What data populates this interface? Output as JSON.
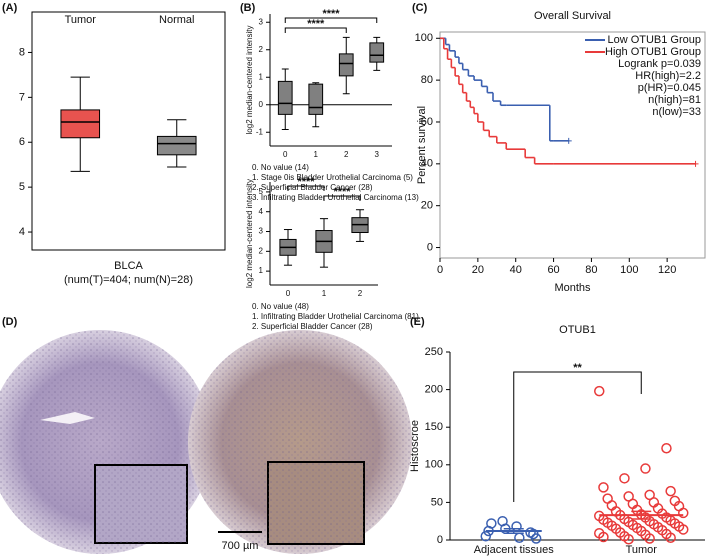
{
  "chart_data": [
    {
      "type": "box",
      "panel": "(A)",
      "categories": [
        "Tumor",
        "Normal"
      ],
      "boxes": [
        {
          "min": 5.35,
          "q1": 6.1,
          "median": 6.45,
          "q3": 6.72,
          "max": 7.45,
          "color": "#e8534f"
        },
        {
          "min": 5.45,
          "q1": 5.72,
          "median": 5.97,
          "q3": 6.13,
          "max": 6.5,
          "color": "#8a8a8a"
        }
      ],
      "ylim": [
        3.6,
        8.5
      ],
      "yticks": [
        4,
        5,
        6,
        7,
        8
      ],
      "xlabel": "BLCA",
      "note": "(num(T)=404; num(N)=28)"
    },
    {
      "type": "box",
      "panel": "(B)",
      "ylabel": "log2 median-centered intensity",
      "categories": [
        "0",
        "1",
        "2",
        "3"
      ],
      "boxes": [
        {
          "min": -0.9,
          "q1": -0.35,
          "median": 0.05,
          "q3": 0.85,
          "max": 1.3,
          "color": "#808080"
        },
        {
          "min": -0.8,
          "q1": -0.35,
          "median": -0.1,
          "q3": 0.75,
          "max": 0.8,
          "color": "#808080"
        },
        {
          "min": 0.4,
          "q1": 1.05,
          "median": 1.5,
          "q3": 1.85,
          "max": 2.45,
          "color": "#808080"
        },
        {
          "min": 1.25,
          "q1": 1.55,
          "median": 1.8,
          "q3": 2.25,
          "max": 2.45,
          "color": "#808080"
        }
      ],
      "ylim": [
        -1.5,
        3.3
      ],
      "yticks": [
        -1,
        0,
        1,
        2,
        3
      ],
      "reference_line": 0,
      "brackets": [
        {
          "between": [
            "0",
            "3"
          ],
          "label": "****"
        },
        {
          "between": [
            "0",
            "2"
          ],
          "label": "****"
        }
      ],
      "legend_notes": [
        "0. No value (14)",
        "1. Stage 0is Bladder Urothelial Carcinoma (5)",
        "2. Superficial Bladder Cancer (28)",
        "3. Infiltrating Bladder Urothelial Carcinoma (13)"
      ]
    },
    {
      "type": "box",
      "ylabel": "log2 median-centered intensity",
      "categories": [
        "0",
        "1",
        "2"
      ],
      "boxes": [
        {
          "min": 1.3,
          "q1": 1.8,
          "median": 2.2,
          "q3": 2.6,
          "max": 3.1,
          "color": "#808080"
        },
        {
          "min": 1.2,
          "q1": 1.95,
          "median": 2.5,
          "q3": 3.05,
          "max": 3.65,
          "color": "#808080"
        },
        {
          "min": 2.5,
          "q1": 2.95,
          "median": 3.35,
          "q3": 3.7,
          "max": 4.1,
          "color": "#808080"
        }
      ],
      "ylim": [
        0.3,
        5.5
      ],
      "yticks": [
        1,
        2,
        3,
        4,
        5
      ],
      "brackets": [
        {
          "between": [
            "0",
            "1"
          ],
          "label": "****"
        },
        {
          "between": [
            "1",
            "2"
          ],
          "label": "****"
        }
      ],
      "legend_notes": [
        "0. No value (48)",
        "1. Infiltrating Bladder Urothelial Carcinoma (81)",
        "2. Superficial Bladder Cancer (28)"
      ]
    },
    {
      "type": "line",
      "panel": "(C)",
      "title": "Overall Survival",
      "xlabel": "Months",
      "ylabel": "Percent survival",
      "xlim": [
        0,
        140
      ],
      "xticks": [
        0,
        20,
        40,
        60,
        80,
        100,
        120
      ],
      "ylim": [
        -5,
        103
      ],
      "yticks": [
        0,
        20,
        40,
        60,
        80,
        100
      ],
      "step": true,
      "legend": "upper right",
      "series": [
        {
          "name": "Low OTUB1 Group",
          "color": "#3a5fb0",
          "x": [
            0,
            3,
            5,
            8,
            10,
            12,
            15,
            18,
            22,
            25,
            28,
            32,
            35,
            58,
            60,
            68
          ],
          "values": [
            100,
            97,
            94,
            91,
            88,
            85,
            82,
            80,
            77,
            74,
            70,
            68,
            68,
            51,
            51,
            51
          ]
        },
        {
          "name": "High OTUB1 Group",
          "color": "#e83a3a",
          "x": [
            0,
            2,
            4,
            6,
            8,
            10,
            12,
            14,
            16,
            18,
            20,
            23,
            26,
            30,
            35,
            45,
            50,
            60,
            135
          ],
          "values": [
            100,
            95,
            90,
            86,
            82,
            78,
            74,
            70,
            67,
            64,
            60,
            56,
            53,
            50,
            47,
            43,
            40,
            40,
            40
          ]
        }
      ],
      "annotations": [
        "Logrank p=0.039",
        "HR(high)=2.2",
        "p(HR)=0.045",
        "n(high)=81",
        "n(low)=33"
      ]
    },
    {
      "type": "scatter",
      "panel": "(E)",
      "title": "OTUB1",
      "ylabel": "Histoscroe",
      "categories": [
        "Adjacent tissues",
        "Tumor"
      ],
      "ylim": [
        0,
        250
      ],
      "yticks": [
        0,
        50,
        100,
        150,
        200,
        250
      ],
      "groups": [
        {
          "color": "#3a5fb0",
          "values": [
            5,
            10,
            18,
            25,
            12,
            8,
            3,
            15,
            22,
            2
          ],
          "mean": 12,
          "sem": 3
        },
        {
          "color": "#e83a3a",
          "values": [
            198,
            122,
            95,
            82,
            70,
            65,
            60,
            58,
            55,
            52,
            50,
            48,
            46,
            45,
            42,
            40,
            38,
            36,
            35,
            34,
            33,
            32,
            30,
            30,
            28,
            27,
            26,
            25,
            24,
            23,
            22,
            21,
            20,
            19,
            18,
            17,
            16,
            15,
            14,
            13,
            12,
            10,
            9,
            8,
            7,
            5,
            4,
            3,
            2,
            1
          ],
          "mean": 33,
          "sem": 5
        }
      ],
      "brackets": [
        {
          "between": [
            "Adjacent tissues",
            "Tumor"
          ],
          "label": "**"
        }
      ]
    }
  ],
  "image_panel": {
    "panel": "(D)",
    "scale_bar": "700 µm"
  }
}
